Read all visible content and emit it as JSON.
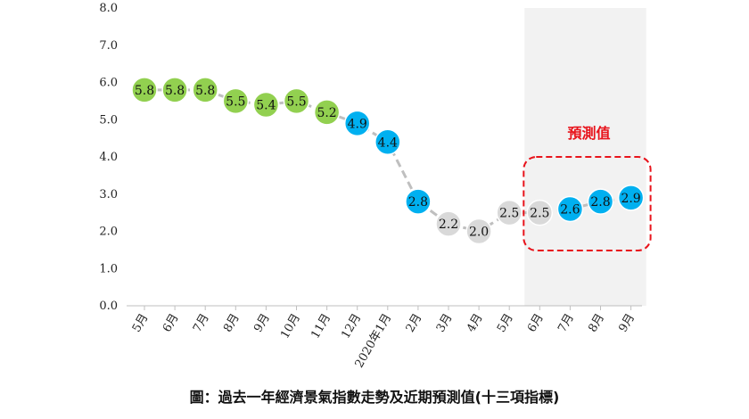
{
  "caption": "圖：過去一年經濟景氣指數走勢及近期預測值(十三項指標)",
  "chart_data": {
    "type": "line",
    "categories": [
      "5月",
      "6月",
      "7月",
      "8月",
      "9月",
      "10月",
      "11月",
      "12月",
      "2020年1月",
      "2月",
      "3月",
      "4月",
      "5月",
      "6月",
      "7月",
      "8月",
      "9月"
    ],
    "values": [
      5.8,
      5.8,
      5.8,
      5.5,
      5.4,
      5.5,
      5.2,
      4.9,
      4.4,
      2.8,
      2.2,
      2.0,
      2.5,
      2.5,
      2.6,
      2.8,
      2.9
    ],
    "value_labels": [
      "5.8",
      "5.8",
      "5.8",
      "5.5",
      "5.4",
      "5.5",
      "5.2",
      "4.9",
      "4.4",
      "2.8",
      "2.2",
      "2.0",
      "2.5",
      "2.5",
      "2.6",
      "2.8",
      "2.9"
    ],
    "ylim": [
      0,
      8
    ],
    "yticks": [
      "0.0",
      "1.0",
      "2.0",
      "3.0",
      "4.0",
      "5.0",
      "6.0",
      "7.0",
      "8.0"
    ],
    "grid": false,
    "point_colors": [
      "#92d050",
      "#92d050",
      "#92d050",
      "#92d050",
      "#92d050",
      "#92d050",
      "#92d050",
      "#00b0f0",
      "#00b0f0",
      "#00b0f0",
      "#d9d9d9",
      "#d9d9d9",
      "#d9d9d9",
      "#d9d9d9",
      "#00b0f0",
      "#00b0f0",
      "#00b0f0"
    ],
    "line_color": "#bfbfbf",
    "forecast_shade": {
      "from_index": 13,
      "to_index": 16,
      "color": "#f2f2f2"
    },
    "forecast_box": {
      "label": "預測值",
      "from_index": 13,
      "to_index": 16,
      "color": "#e8141c"
    }
  }
}
